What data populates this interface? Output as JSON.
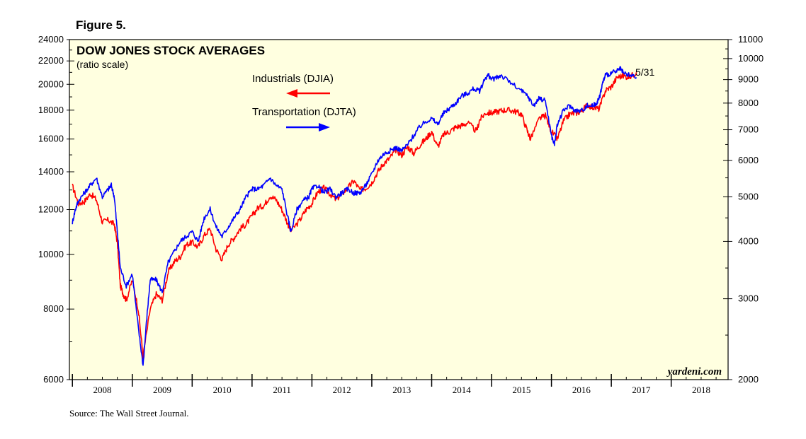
{
  "figure_label": "Figure 5.",
  "source": "Source: The Wall Street Journal.",
  "watermark": "yardeni.com",
  "colors": {
    "background": "#ffffe0",
    "industrials": "#ff0000",
    "transportation": "#0000ff"
  },
  "chart_data": {
    "type": "line",
    "title": "DOW JONES STOCK AVERAGES",
    "subtitle": "(ratio scale)",
    "end_label": "5/31",
    "x_range": [
      2007.95,
      2018.95
    ],
    "x_tick_labels": [
      "2008",
      "2009",
      "2010",
      "2011",
      "2012",
      "2013",
      "2014",
      "2015",
      "2016",
      "2017",
      "2018"
    ],
    "y_left": {
      "scale": "log",
      "range": [
        6000,
        24000
      ],
      "ticks": [
        6000,
        8000,
        10000,
        12000,
        14000,
        16000,
        18000,
        20000,
        22000,
        24000
      ],
      "tick_labels": [
        "6000",
        "8000",
        "10000",
        "12000",
        "14000",
        "16000",
        "18000",
        "20000",
        "22000",
        "24000"
      ]
    },
    "y_right": {
      "scale": "log",
      "range": [
        2000,
        11000
      ],
      "ticks": [
        2000,
        3000,
        4000,
        5000,
        6000,
        7000,
        8000,
        9000,
        10000,
        11000
      ],
      "tick_labels": [
        "2000",
        "3000",
        "4000",
        "5000",
        "6000",
        "7000",
        "8000",
        "9000",
        "10000",
        "11000"
      ]
    },
    "series": [
      {
        "name": "Industrials (DJIA)",
        "axis": "left",
        "arrow": "left",
        "points": [
          [
            2008.0,
            13200
          ],
          [
            2008.1,
            12300
          ],
          [
            2008.2,
            12400
          ],
          [
            2008.3,
            12800
          ],
          [
            2008.4,
            12500
          ],
          [
            2008.5,
            11400
          ],
          [
            2008.6,
            11500
          ],
          [
            2008.7,
            11300
          ],
          [
            2008.75,
            10500
          ],
          [
            2008.8,
            8800
          ],
          [
            2008.85,
            8500
          ],
          [
            2008.9,
            8300
          ],
          [
            2009.0,
            9000
          ],
          [
            2009.1,
            8000
          ],
          [
            2009.18,
            6600
          ],
          [
            2009.3,
            8000
          ],
          [
            2009.4,
            8500
          ],
          [
            2009.5,
            8300
          ],
          [
            2009.6,
            9300
          ],
          [
            2009.7,
            9700
          ],
          [
            2009.8,
            9900
          ],
          [
            2009.9,
            10400
          ],
          [
            2010.0,
            10500
          ],
          [
            2010.1,
            10300
          ],
          [
            2010.2,
            10800
          ],
          [
            2010.3,
            11100
          ],
          [
            2010.4,
            10200
          ],
          [
            2010.5,
            9800
          ],
          [
            2010.6,
            10400
          ],
          [
            2010.7,
            10700
          ],
          [
            2010.8,
            11100
          ],
          [
            2010.9,
            11300
          ],
          [
            2011.0,
            11700
          ],
          [
            2011.1,
            12100
          ],
          [
            2011.2,
            12200
          ],
          [
            2011.3,
            12700
          ],
          [
            2011.4,
            12500
          ],
          [
            2011.5,
            12000
          ],
          [
            2011.6,
            11300
          ],
          [
            2011.65,
            11000
          ],
          [
            2011.8,
            11500
          ],
          [
            2011.9,
            12000
          ],
          [
            2012.0,
            12300
          ],
          [
            2012.1,
            12900
          ],
          [
            2012.2,
            13100
          ],
          [
            2012.3,
            12800
          ],
          [
            2012.4,
            12500
          ],
          [
            2012.5,
            12800
          ],
          [
            2012.6,
            13100
          ],
          [
            2012.7,
            13500
          ],
          [
            2012.8,
            13000
          ],
          [
            2012.9,
            13100
          ],
          [
            2013.0,
            13400
          ],
          [
            2013.1,
            14000
          ],
          [
            2013.2,
            14500
          ],
          [
            2013.3,
            14800
          ],
          [
            2013.4,
            15300
          ],
          [
            2013.5,
            15000
          ],
          [
            2013.6,
            15500
          ],
          [
            2013.7,
            15100
          ],
          [
            2013.8,
            15600
          ],
          [
            2013.9,
            16000
          ],
          [
            2014.0,
            16500
          ],
          [
            2014.1,
            15500
          ],
          [
            2014.2,
            16300
          ],
          [
            2014.3,
            16500
          ],
          [
            2014.4,
            16800
          ],
          [
            2014.5,
            16900
          ],
          [
            2014.6,
            17100
          ],
          [
            2014.75,
            16500
          ],
          [
            2014.8,
            17300
          ],
          [
            2014.9,
            17800
          ],
          [
            2015.0,
            17800
          ],
          [
            2015.1,
            17900
          ],
          [
            2015.2,
            18000
          ],
          [
            2015.3,
            18000
          ],
          [
            2015.4,
            17900
          ],
          [
            2015.5,
            17700
          ],
          [
            2015.6,
            16500
          ],
          [
            2015.65,
            16000
          ],
          [
            2015.8,
            17400
          ],
          [
            2015.9,
            17600
          ],
          [
            2016.0,
            16500
          ],
          [
            2016.1,
            16000
          ],
          [
            2016.2,
            17200
          ],
          [
            2016.3,
            17700
          ],
          [
            2016.4,
            17800
          ],
          [
            2016.5,
            17900
          ],
          [
            2016.6,
            18400
          ],
          [
            2016.7,
            18200
          ],
          [
            2016.8,
            18100
          ],
          [
            2016.9,
            19500
          ],
          [
            2017.0,
            19800
          ],
          [
            2017.1,
            20600
          ],
          [
            2017.2,
            20700
          ],
          [
            2017.3,
            20600
          ],
          [
            2017.42,
            21000
          ]
        ]
      },
      {
        "name": "Transportation (DJTA)",
        "axis": "right",
        "arrow": "right",
        "points": [
          [
            2008.0,
            4400
          ],
          [
            2008.05,
            4700
          ],
          [
            2008.1,
            4900
          ],
          [
            2008.2,
            5100
          ],
          [
            2008.3,
            5300
          ],
          [
            2008.4,
            5500
          ],
          [
            2008.5,
            5000
          ],
          [
            2008.6,
            5200
          ],
          [
            2008.65,
            5300
          ],
          [
            2008.7,
            5000
          ],
          [
            2008.75,
            4200
          ],
          [
            2008.8,
            3500
          ],
          [
            2008.9,
            3200
          ],
          [
            2009.0,
            3400
          ],
          [
            2009.1,
            2600
          ],
          [
            2009.18,
            2150
          ],
          [
            2009.25,
            2800
          ],
          [
            2009.3,
            3300
          ],
          [
            2009.4,
            3300
          ],
          [
            2009.5,
            3100
          ],
          [
            2009.6,
            3600
          ],
          [
            2009.7,
            3800
          ],
          [
            2009.8,
            4000
          ],
          [
            2009.9,
            4100
          ],
          [
            2010.0,
            4200
          ],
          [
            2010.1,
            4000
          ],
          [
            2010.2,
            4500
          ],
          [
            2010.3,
            4700
          ],
          [
            2010.4,
            4300
          ],
          [
            2010.5,
            4100
          ],
          [
            2010.6,
            4300
          ],
          [
            2010.7,
            4500
          ],
          [
            2010.8,
            4700
          ],
          [
            2010.9,
            5000
          ],
          [
            2011.0,
            5200
          ],
          [
            2011.1,
            5200
          ],
          [
            2011.2,
            5300
          ],
          [
            2011.3,
            5500
          ],
          [
            2011.4,
            5300
          ],
          [
            2011.5,
            5200
          ],
          [
            2011.6,
            4500
          ],
          [
            2011.65,
            4200
          ],
          [
            2011.75,
            4700
          ],
          [
            2011.85,
            4900
          ],
          [
            2011.95,
            5000
          ],
          [
            2012.0,
            5200
          ],
          [
            2012.1,
            5300
          ],
          [
            2012.2,
            5100
          ],
          [
            2012.3,
            5200
          ],
          [
            2012.4,
            5000
          ],
          [
            2012.5,
            5100
          ],
          [
            2012.6,
            5200
          ],
          [
            2012.7,
            5100
          ],
          [
            2012.8,
            5100
          ],
          [
            2012.9,
            5300
          ],
          [
            2013.0,
            5600
          ],
          [
            2013.1,
            6000
          ],
          [
            2013.2,
            6200
          ],
          [
            2013.3,
            6300
          ],
          [
            2013.4,
            6400
          ],
          [
            2013.5,
            6300
          ],
          [
            2013.6,
            6500
          ],
          [
            2013.7,
            6800
          ],
          [
            2013.8,
            7100
          ],
          [
            2013.9,
            7300
          ],
          [
            2014.0,
            7400
          ],
          [
            2014.1,
            7200
          ],
          [
            2014.2,
            7600
          ],
          [
            2014.3,
            7800
          ],
          [
            2014.4,
            8000
          ],
          [
            2014.5,
            8300
          ],
          [
            2014.6,
            8400
          ],
          [
            2014.7,
            8600
          ],
          [
            2014.8,
            8500
          ],
          [
            2014.9,
            9100
          ],
          [
            2014.95,
            9200
          ],
          [
            2015.0,
            9000
          ],
          [
            2015.1,
            9100
          ],
          [
            2015.15,
            9200
          ],
          [
            2015.3,
            8900
          ],
          [
            2015.5,
            8500
          ],
          [
            2015.6,
            8300
          ],
          [
            2015.7,
            7900
          ],
          [
            2015.8,
            8200
          ],
          [
            2015.9,
            8100
          ],
          [
            2016.0,
            6800
          ],
          [
            2016.05,
            6500
          ],
          [
            2016.1,
            7200
          ],
          [
            2016.2,
            7700
          ],
          [
            2016.3,
            7900
          ],
          [
            2016.4,
            7700
          ],
          [
            2016.5,
            7700
          ],
          [
            2016.6,
            7900
          ],
          [
            2016.7,
            7900
          ],
          [
            2016.75,
            8000
          ],
          [
            2016.8,
            8200
          ],
          [
            2016.85,
            8800
          ],
          [
            2016.9,
            9200
          ],
          [
            2017.0,
            9300
          ],
          [
            2017.1,
            9400
          ],
          [
            2017.15,
            9500
          ],
          [
            2017.2,
            9300
          ],
          [
            2017.3,
            9200
          ],
          [
            2017.42,
            9100
          ]
        ]
      }
    ]
  }
}
